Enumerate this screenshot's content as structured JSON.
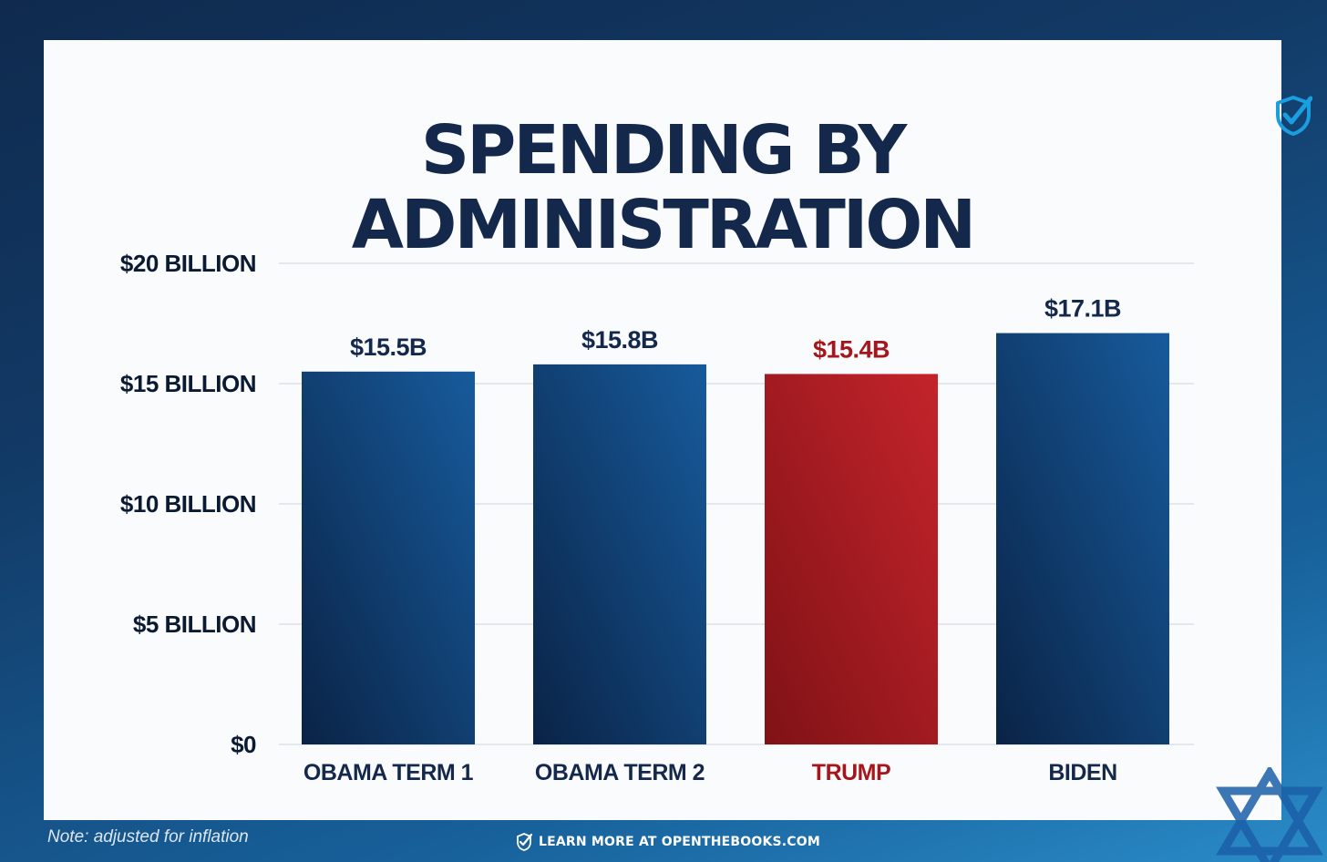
{
  "title_lines": [
    "SPENDING BY",
    "ADMINISTRATION"
  ],
  "note": "Note: adjusted for inflation",
  "footer_text": "LEARN MORE AT OPENTHEBOOKS.COM",
  "icons": {
    "badge": "shield-check-icon",
    "footer": "shield-check-icon",
    "corner": "star-of-david-icon"
  },
  "colors": {
    "navy": "#13284b",
    "bar_blue_dark": "#0c2a52",
    "bar_blue_light": "#155a9a",
    "bar_red_dark": "#8e1519",
    "bar_red_light": "#c0232a",
    "red_text": "#a5161c",
    "accent_cyan": "#1a9ee0"
  },
  "chart_data": {
    "type": "bar",
    "title": "SPENDING BY ADMINISTRATION",
    "categories": [
      "OBAMA TERM 1",
      "OBAMA TERM 2",
      "TRUMP",
      "BIDEN"
    ],
    "values": [
      15.5,
      15.8,
      15.4,
      17.1
    ],
    "value_labels": [
      "$15.5B",
      "$15.8B",
      "$15.4B",
      "$17.1B"
    ],
    "highlight": [
      false,
      false,
      true,
      false
    ],
    "unit": "billion USD",
    "ylim": [
      0,
      20
    ],
    "yticks": [
      0,
      5,
      10,
      15,
      20
    ],
    "ytick_labels": [
      "$0",
      "$5 BILLION",
      "$10 BILLION",
      "$15 BILLION",
      "$20 BILLION"
    ],
    "grid": true,
    "xlabel": "",
    "ylabel": ""
  }
}
